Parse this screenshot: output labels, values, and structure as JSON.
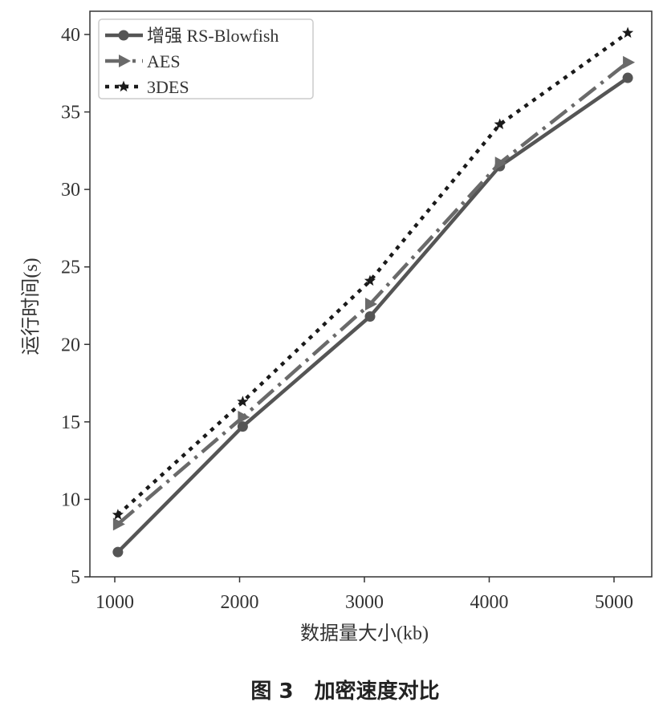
{
  "chart_data": {
    "type": "line",
    "title": "",
    "xlabel": "数据量大小(kb)",
    "ylabel": "运行时间(s)",
    "x": [
      1000,
      2000,
      3000,
      4000,
      5000
    ],
    "x_ticks": [
      "1000",
      "2000",
      "3000",
      "4000",
      "5000"
    ],
    "y_ticks": [
      "5",
      "10",
      "15",
      "20",
      "25",
      "30",
      "35",
      "40"
    ],
    "ylim": [
      5,
      41.5
    ],
    "grid": false,
    "legend_position": "top-left",
    "series": [
      {
        "name": "增强 RS-Blowfish",
        "x": [
          1025,
          2025,
          3045,
          4085,
          5110
        ],
        "values": [
          6.6,
          14.7,
          21.8,
          31.5,
          37.2
        ],
        "color": "#555555",
        "line_style": "solid",
        "marker": "circle"
      },
      {
        "name": "AES",
        "x": [
          1025,
          2025,
          3045,
          4085,
          5110
        ],
        "values": [
          8.4,
          15.3,
          22.6,
          31.7,
          38.2
        ],
        "color": "#6a6a6a",
        "line_style": "dash-dot",
        "marker": "triangle-right"
      },
      {
        "name": "3DES",
        "x": [
          1025,
          2025,
          3045,
          4085,
          5110
        ],
        "values": [
          9.0,
          16.3,
          24.1,
          34.2,
          40.1
        ],
        "color": "#1a1a1a",
        "line_style": "dotted",
        "marker": "star"
      }
    ]
  },
  "caption": "图 3　加密速度对比"
}
